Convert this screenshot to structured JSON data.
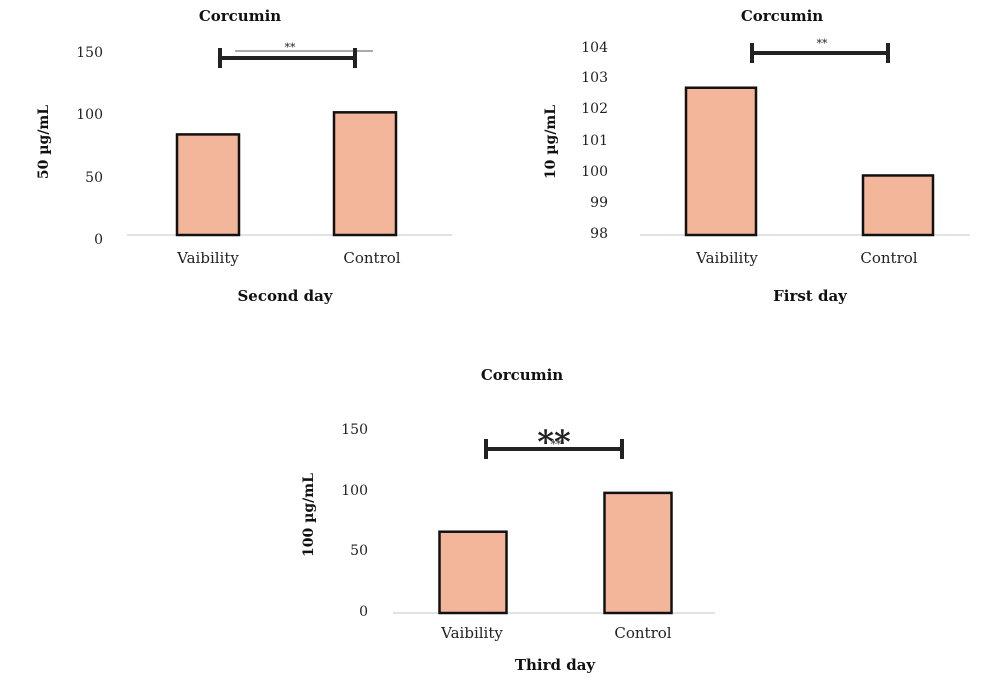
{
  "colors": {
    "bar_fill": "#F4B69B",
    "bar_stroke": "#111111",
    "axis": "#d9d9d9",
    "bracket": "#222222"
  },
  "chart_data": [
    {
      "id": "second",
      "type": "bar",
      "title": "Corcumin",
      "ylabel": "50 µg/mL",
      "xlabel": "Second day",
      "categories": [
        "Vaibility",
        "Control"
      ],
      "values": [
        82,
        100
      ],
      "ylim": [
        0,
        150
      ],
      "yticks": [
        "0",
        "50",
        "100",
        "150"
      ],
      "yticks_values": [
        0,
        50,
        100,
        150
      ],
      "grid": false,
      "annotations": [
        {
          "text": "**",
          "between": [
            "Vaibility",
            "Control"
          ]
        }
      ]
    },
    {
      "id": "first",
      "type": "bar",
      "title": "Corcumin",
      "ylabel": "10 µg/mL",
      "xlabel": "First day",
      "categories": [
        "Vaibility",
        "Control"
      ],
      "values": [
        102.7,
        99.9
      ],
      "ylim": [
        98,
        104
      ],
      "yticks": [
        "98",
        "99",
        "100",
        "101",
        "102",
        "103",
        "104"
      ],
      "yticks_values": [
        98,
        99,
        100,
        101,
        102,
        103,
        104
      ],
      "grid": false,
      "annotations": [
        {
          "text": "**",
          "between": [
            "Vaibility",
            "Control"
          ]
        }
      ]
    },
    {
      "id": "third",
      "type": "bar",
      "title": "Corcumin",
      "ylabel": "100 µg/mL",
      "xlabel": "Third day",
      "categories": [
        "Vaibility",
        "Control"
      ],
      "values": [
        67,
        99
      ],
      "ylim": [
        0,
        150
      ],
      "yticks": [
        "0",
        "50",
        "100",
        "150"
      ],
      "yticks_values": [
        0,
        50,
        100,
        150
      ],
      "grid": false,
      "annotations": [
        {
          "text": "**",
          "between": [
            "Vaibility",
            "Control"
          ]
        },
        {
          "text": "**",
          "between": [
            "Vaibility",
            "Control"
          ]
        }
      ]
    }
  ]
}
